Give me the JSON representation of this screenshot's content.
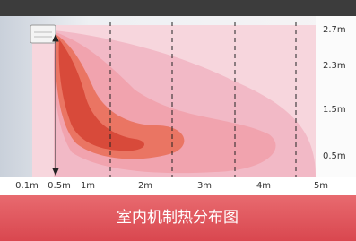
{
  "diagram": {
    "caption": "室内机制热分布图",
    "height_labels": [
      "2.7m",
      "2.3m",
      "1.5m",
      "0.5m"
    ],
    "distance_labels": [
      "0.1m",
      "0.5m",
      "1m",
      "2m",
      "3m",
      "4m",
      "5m"
    ]
  }
}
